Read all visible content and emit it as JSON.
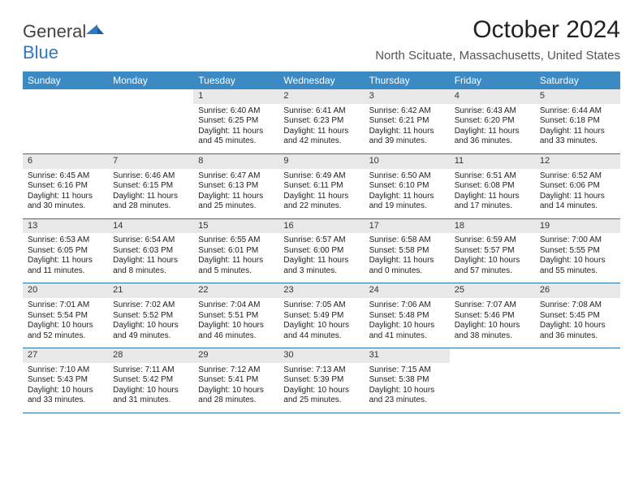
{
  "brand": {
    "part1": "General",
    "part2": "Blue"
  },
  "title": "October 2024",
  "location": "North Scituate, Massachusetts, United States",
  "colors": {
    "header_bg": "#3b8ac4",
    "header_text": "#ffffff",
    "daynum_bg": "#e8e8e8",
    "row_border": "#2f6ea6",
    "logo_blue": "#2f78c4"
  },
  "fonts": {
    "title_size": 30,
    "location_size": 15,
    "weekday_size": 12,
    "cell_size": 10
  },
  "weekdays": [
    "Sunday",
    "Monday",
    "Tuesday",
    "Wednesday",
    "Thursday",
    "Friday",
    "Saturday"
  ],
  "weeks": [
    [
      null,
      null,
      {
        "n": "1",
        "sr": "Sunrise: 6:40 AM",
        "ss": "Sunset: 6:25 PM",
        "d1": "Daylight: 11 hours",
        "d2": "and 45 minutes."
      },
      {
        "n": "2",
        "sr": "Sunrise: 6:41 AM",
        "ss": "Sunset: 6:23 PM",
        "d1": "Daylight: 11 hours",
        "d2": "and 42 minutes."
      },
      {
        "n": "3",
        "sr": "Sunrise: 6:42 AM",
        "ss": "Sunset: 6:21 PM",
        "d1": "Daylight: 11 hours",
        "d2": "and 39 minutes."
      },
      {
        "n": "4",
        "sr": "Sunrise: 6:43 AM",
        "ss": "Sunset: 6:20 PM",
        "d1": "Daylight: 11 hours",
        "d2": "and 36 minutes."
      },
      {
        "n": "5",
        "sr": "Sunrise: 6:44 AM",
        "ss": "Sunset: 6:18 PM",
        "d1": "Daylight: 11 hours",
        "d2": "and 33 minutes."
      }
    ],
    [
      {
        "n": "6",
        "sr": "Sunrise: 6:45 AM",
        "ss": "Sunset: 6:16 PM",
        "d1": "Daylight: 11 hours",
        "d2": "and 30 minutes."
      },
      {
        "n": "7",
        "sr": "Sunrise: 6:46 AM",
        "ss": "Sunset: 6:15 PM",
        "d1": "Daylight: 11 hours",
        "d2": "and 28 minutes."
      },
      {
        "n": "8",
        "sr": "Sunrise: 6:47 AM",
        "ss": "Sunset: 6:13 PM",
        "d1": "Daylight: 11 hours",
        "d2": "and 25 minutes."
      },
      {
        "n": "9",
        "sr": "Sunrise: 6:49 AM",
        "ss": "Sunset: 6:11 PM",
        "d1": "Daylight: 11 hours",
        "d2": "and 22 minutes."
      },
      {
        "n": "10",
        "sr": "Sunrise: 6:50 AM",
        "ss": "Sunset: 6:10 PM",
        "d1": "Daylight: 11 hours",
        "d2": "and 19 minutes."
      },
      {
        "n": "11",
        "sr": "Sunrise: 6:51 AM",
        "ss": "Sunset: 6:08 PM",
        "d1": "Daylight: 11 hours",
        "d2": "and 17 minutes."
      },
      {
        "n": "12",
        "sr": "Sunrise: 6:52 AM",
        "ss": "Sunset: 6:06 PM",
        "d1": "Daylight: 11 hours",
        "d2": "and 14 minutes."
      }
    ],
    [
      {
        "n": "13",
        "sr": "Sunrise: 6:53 AM",
        "ss": "Sunset: 6:05 PM",
        "d1": "Daylight: 11 hours",
        "d2": "and 11 minutes."
      },
      {
        "n": "14",
        "sr": "Sunrise: 6:54 AM",
        "ss": "Sunset: 6:03 PM",
        "d1": "Daylight: 11 hours",
        "d2": "and 8 minutes."
      },
      {
        "n": "15",
        "sr": "Sunrise: 6:55 AM",
        "ss": "Sunset: 6:01 PM",
        "d1": "Daylight: 11 hours",
        "d2": "and 5 minutes."
      },
      {
        "n": "16",
        "sr": "Sunrise: 6:57 AM",
        "ss": "Sunset: 6:00 PM",
        "d1": "Daylight: 11 hours",
        "d2": "and 3 minutes."
      },
      {
        "n": "17",
        "sr": "Sunrise: 6:58 AM",
        "ss": "Sunset: 5:58 PM",
        "d1": "Daylight: 11 hours",
        "d2": "and 0 minutes."
      },
      {
        "n": "18",
        "sr": "Sunrise: 6:59 AM",
        "ss": "Sunset: 5:57 PM",
        "d1": "Daylight: 10 hours",
        "d2": "and 57 minutes."
      },
      {
        "n": "19",
        "sr": "Sunrise: 7:00 AM",
        "ss": "Sunset: 5:55 PM",
        "d1": "Daylight: 10 hours",
        "d2": "and 55 minutes."
      }
    ],
    [
      {
        "n": "20",
        "sr": "Sunrise: 7:01 AM",
        "ss": "Sunset: 5:54 PM",
        "d1": "Daylight: 10 hours",
        "d2": "and 52 minutes."
      },
      {
        "n": "21",
        "sr": "Sunrise: 7:02 AM",
        "ss": "Sunset: 5:52 PM",
        "d1": "Daylight: 10 hours",
        "d2": "and 49 minutes."
      },
      {
        "n": "22",
        "sr": "Sunrise: 7:04 AM",
        "ss": "Sunset: 5:51 PM",
        "d1": "Daylight: 10 hours",
        "d2": "and 46 minutes."
      },
      {
        "n": "23",
        "sr": "Sunrise: 7:05 AM",
        "ss": "Sunset: 5:49 PM",
        "d1": "Daylight: 10 hours",
        "d2": "and 44 minutes."
      },
      {
        "n": "24",
        "sr": "Sunrise: 7:06 AM",
        "ss": "Sunset: 5:48 PM",
        "d1": "Daylight: 10 hours",
        "d2": "and 41 minutes."
      },
      {
        "n": "25",
        "sr": "Sunrise: 7:07 AM",
        "ss": "Sunset: 5:46 PM",
        "d1": "Daylight: 10 hours",
        "d2": "and 38 minutes."
      },
      {
        "n": "26",
        "sr": "Sunrise: 7:08 AM",
        "ss": "Sunset: 5:45 PM",
        "d1": "Daylight: 10 hours",
        "d2": "and 36 minutes."
      }
    ],
    [
      {
        "n": "27",
        "sr": "Sunrise: 7:10 AM",
        "ss": "Sunset: 5:43 PM",
        "d1": "Daylight: 10 hours",
        "d2": "and 33 minutes."
      },
      {
        "n": "28",
        "sr": "Sunrise: 7:11 AM",
        "ss": "Sunset: 5:42 PM",
        "d1": "Daylight: 10 hours",
        "d2": "and 31 minutes."
      },
      {
        "n": "29",
        "sr": "Sunrise: 7:12 AM",
        "ss": "Sunset: 5:41 PM",
        "d1": "Daylight: 10 hours",
        "d2": "and 28 minutes."
      },
      {
        "n": "30",
        "sr": "Sunrise: 7:13 AM",
        "ss": "Sunset: 5:39 PM",
        "d1": "Daylight: 10 hours",
        "d2": "and 25 minutes."
      },
      {
        "n": "31",
        "sr": "Sunrise: 7:15 AM",
        "ss": "Sunset: 5:38 PM",
        "d1": "Daylight: 10 hours",
        "d2": "and 23 minutes."
      },
      null,
      null
    ]
  ]
}
